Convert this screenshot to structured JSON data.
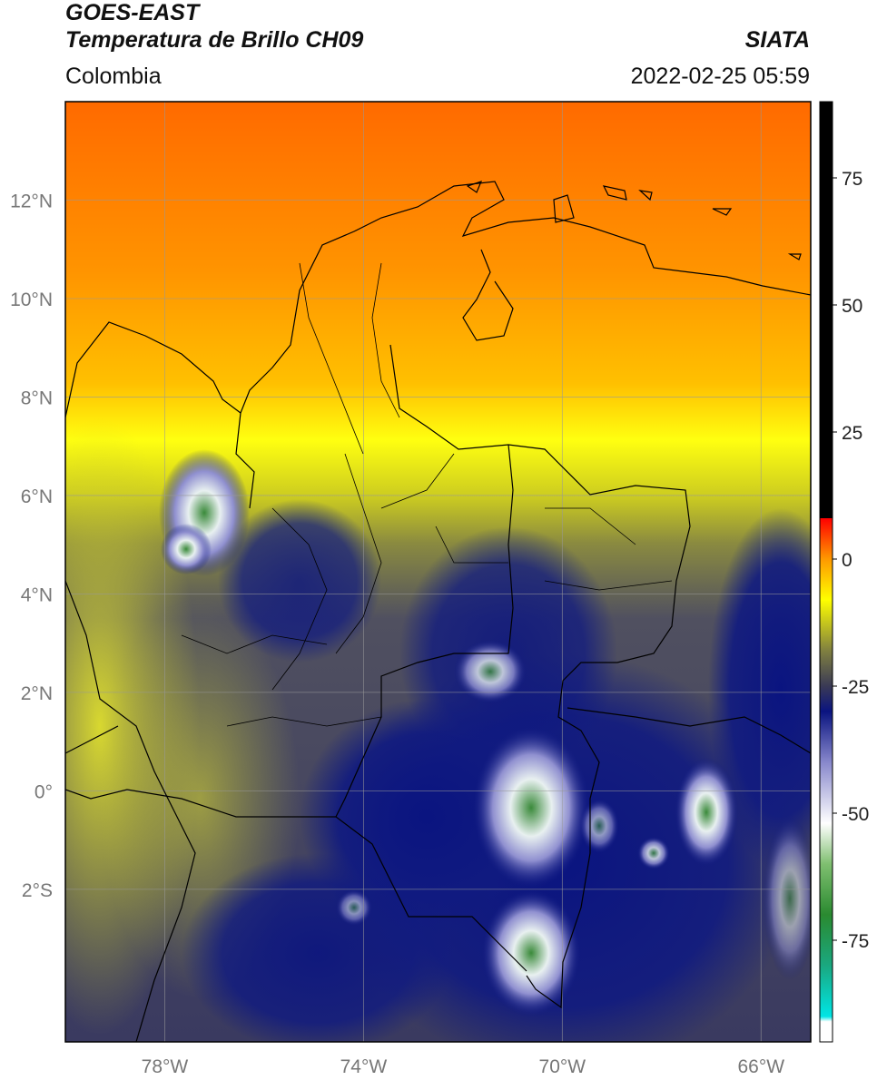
{
  "header": {
    "satellite": "GOES-EAST",
    "product": "Temperatura de Brillo CH09",
    "region": "Colombia",
    "agency": "SIATA",
    "timestamp": "2022-02-25 05:59"
  },
  "map": {
    "lon_range": [
      -80,
      -65
    ],
    "lat_range": [
      -5.1,
      14
    ],
    "lon_ticks": [
      {
        "value": -78,
        "label": "78°W"
      },
      {
        "value": -74,
        "label": "74°W"
      },
      {
        "value": -70,
        "label": "70°W"
      },
      {
        "value": -66,
        "label": "66°W"
      }
    ],
    "lat_ticks": [
      {
        "value": 12,
        "label": "12°N"
      },
      {
        "value": 10,
        "label": "10°N"
      },
      {
        "value": 8,
        "label": "8°N"
      },
      {
        "value": 6,
        "label": "6°N"
      },
      {
        "value": 4,
        "label": "4°N"
      },
      {
        "value": 2,
        "label": "2°N"
      },
      {
        "value": 0,
        "label": "0°"
      },
      {
        "value": -2,
        "label": "2°S"
      }
    ]
  },
  "colorbar": {
    "range": [
      -95,
      90
    ],
    "ticks": [
      {
        "value": 75,
        "label": "75"
      },
      {
        "value": 50,
        "label": "50"
      },
      {
        "value": 25,
        "label": "25"
      },
      {
        "value": 0,
        "label": "0"
      },
      {
        "value": -25,
        "label": "-25"
      },
      {
        "value": -50,
        "label": "-50"
      },
      {
        "value": -75,
        "label": "-75"
      }
    ],
    "stops": [
      {
        "value": -95,
        "color": "#ffffff"
      },
      {
        "value": -91,
        "color": "#ffffff"
      },
      {
        "value": -90,
        "color": "#00e5e5"
      },
      {
        "value": -80,
        "color": "#1aa880"
      },
      {
        "value": -70,
        "color": "#2a8a30"
      },
      {
        "value": -60,
        "color": "#7fbf70"
      },
      {
        "value": -52,
        "color": "#ffffff"
      },
      {
        "value": -40,
        "color": "#8888cc"
      },
      {
        "value": -30,
        "color": "#0a1480"
      },
      {
        "value": -25,
        "color": "#3a3a55"
      },
      {
        "value": -18,
        "color": "#808040"
      },
      {
        "value": -8,
        "color": "#ffff00"
      },
      {
        "value": 0,
        "color": "#ff9900"
      },
      {
        "value": 8,
        "color": "#ff0000"
      },
      {
        "value": 8.01,
        "color": "#000000"
      },
      {
        "value": 90,
        "color": "#000000"
      }
    ]
  }
}
